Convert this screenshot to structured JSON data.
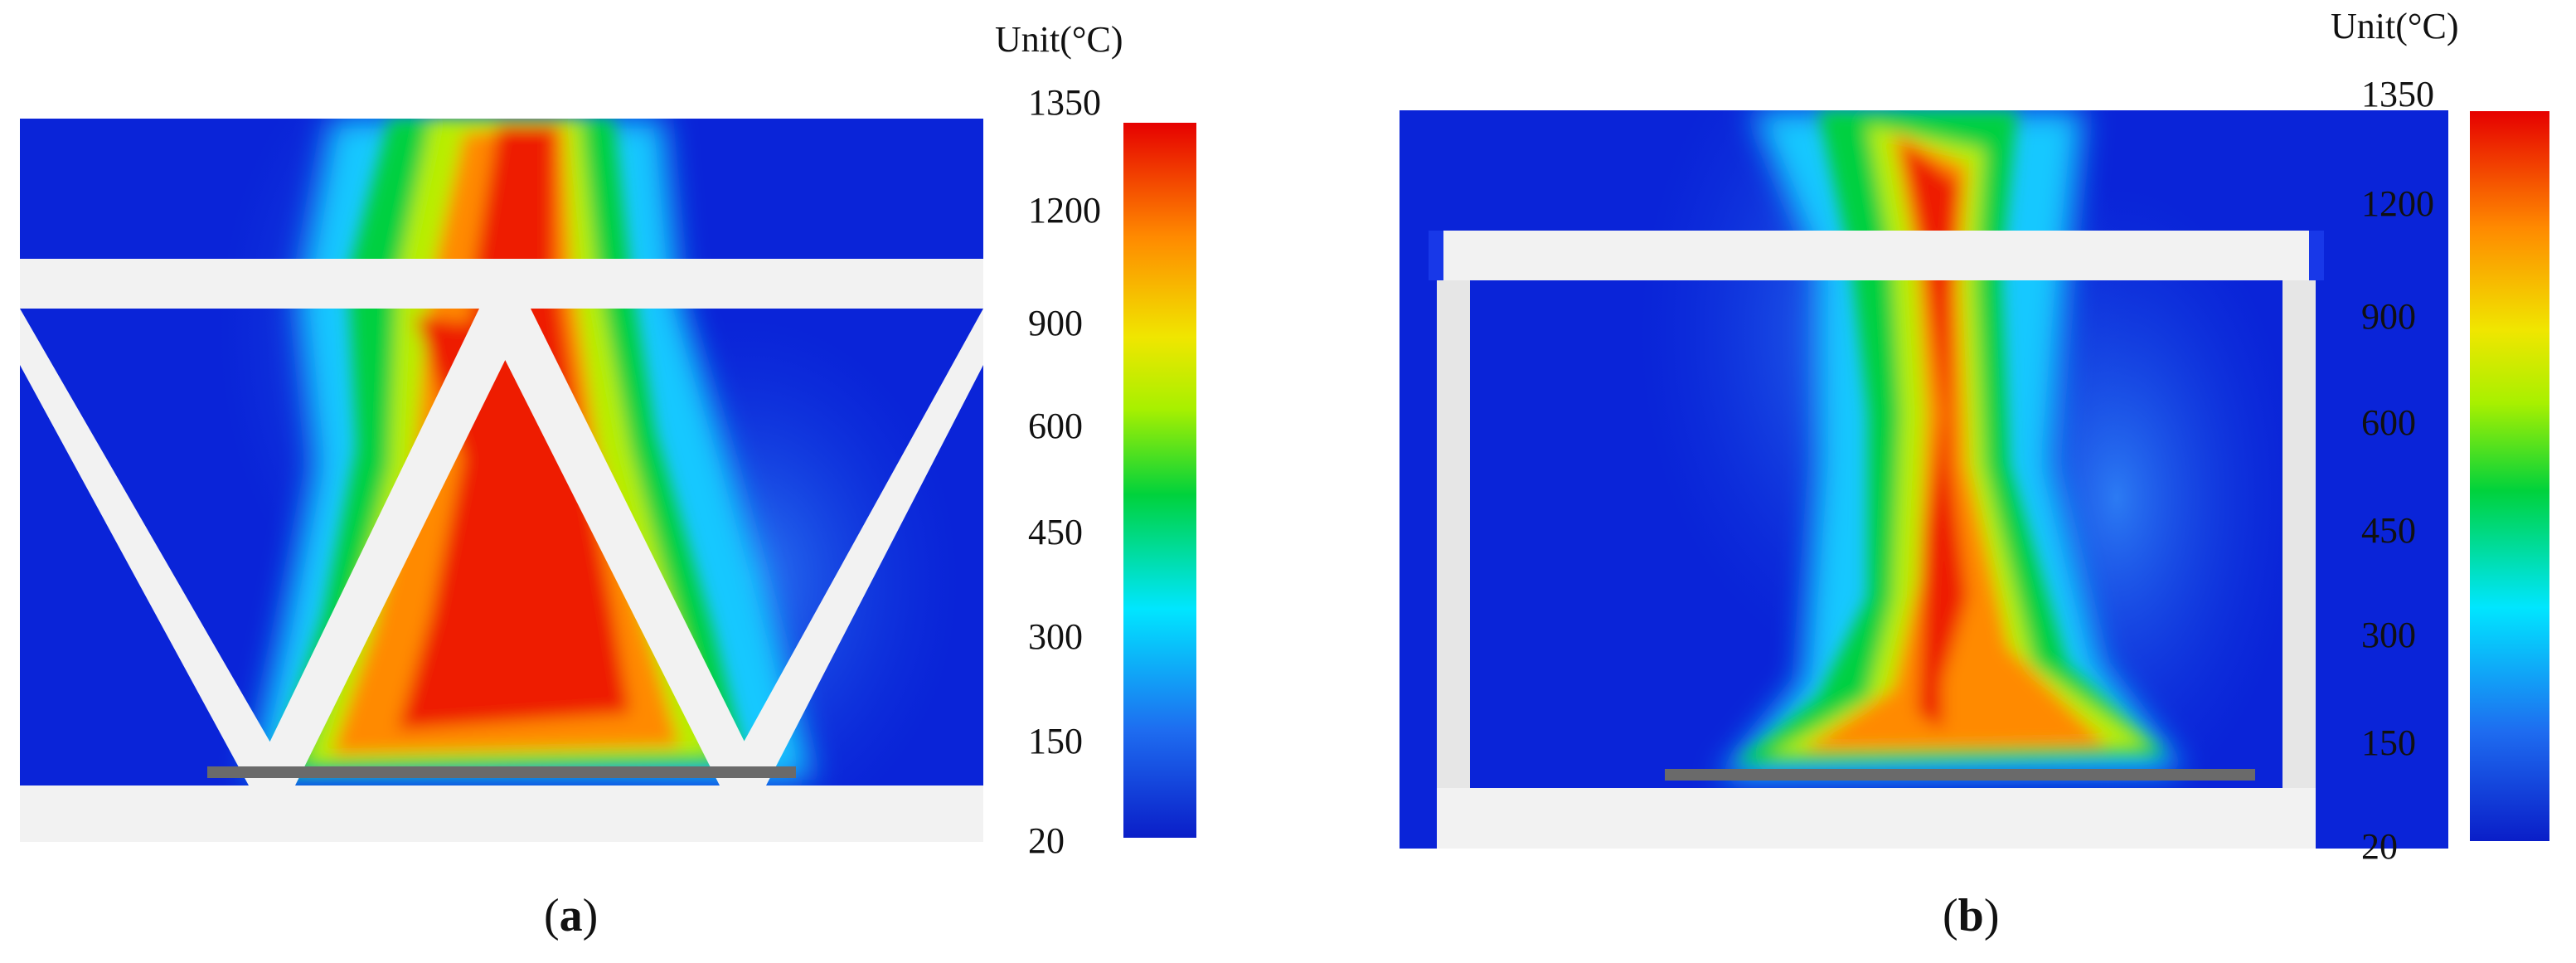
{
  "figure": {
    "panel_a": {
      "caption_open": "(",
      "caption_letter": "a",
      "caption_close": ")",
      "colorbar": {
        "unit": "Unit(°C)",
        "ticks": [
          "1350",
          "1200",
          "900",
          "600",
          "450",
          "300",
          "150",
          "20"
        ],
        "colors": [
          "#0a1ec8",
          "#1e6cf0",
          "#00e6ff",
          "#00d23c",
          "#a8f000",
          "#f0e600",
          "#ff8a00",
          "#e60000"
        ]
      }
    },
    "panel_b": {
      "caption_open": "(",
      "caption_letter": "b",
      "caption_close": ")",
      "colorbar": {
        "unit": "Unit(°C)",
        "ticks": [
          "1350",
          "1200",
          "900",
          "600",
          "450",
          "300",
          "150",
          "20"
        ],
        "colors": [
          "#0a1ec8",
          "#1e6cf0",
          "#00e6ff",
          "#00d23c",
          "#a8f000",
          "#f0e600",
          "#ff8a00",
          "#e60000"
        ]
      }
    }
  }
}
